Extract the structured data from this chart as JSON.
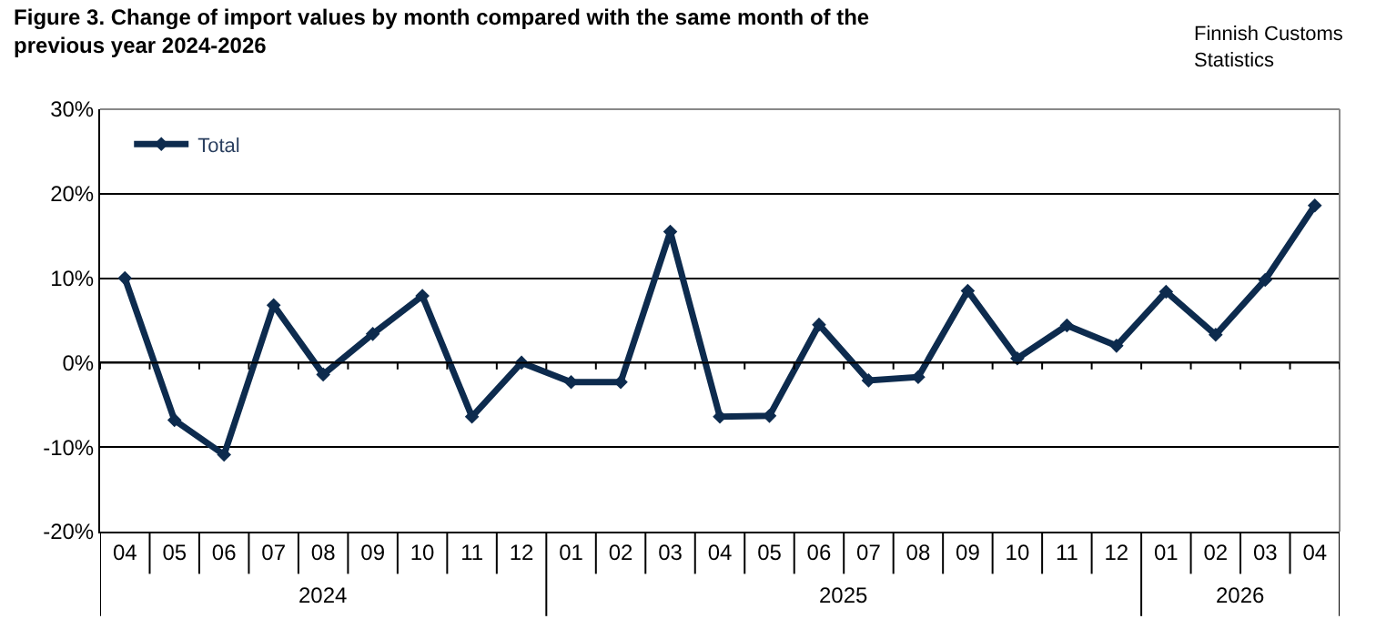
{
  "chart_data": {
    "type": "line",
    "title": "Figure 3. Change of import values by month compared with the same month of the previous year 2024-2026",
    "annotations": [
      "Finnish Customs Statistics",
      "2024",
      "2025",
      "2026"
    ],
    "categories": [
      "04",
      "05",
      "06",
      "07",
      "08",
      "09",
      "10",
      "11",
      "12",
      "01",
      "02",
      "03",
      "04",
      "05",
      "06",
      "07",
      "08",
      "09",
      "10",
      "11",
      "12",
      "01",
      "02",
      "03",
      "04"
    ],
    "series": [
      {
        "name": "Total",
        "color": "#0d2b4e",
        "values": [
          10.0,
          -6.8,
          -10.9,
          6.8,
          -1.4,
          3.4,
          7.9,
          -6.4,
          0.0,
          -2.3,
          -2.3,
          15.5,
          -6.4,
          -6.3,
          4.5,
          -2.1,
          -1.7,
          8.5,
          0.5,
          4.4,
          2.0,
          8.4,
          3.3,
          9.8,
          18.6
        ]
      }
    ],
    "ylim": [
      -20,
      30
    ],
    "yticks": [
      {
        "value": -20,
        "label": "-20%"
      },
      {
        "value": -10,
        "label": "-10%"
      },
      {
        "value": 0,
        "label": "0%"
      },
      {
        "value": 10,
        "label": "10%"
      },
      {
        "value": 20,
        "label": "20%"
      },
      {
        "value": 30,
        "label": "30%"
      }
    ],
    "grid": "y",
    "legend": "top left",
    "marker": "diamond",
    "line_style": "solid"
  }
}
